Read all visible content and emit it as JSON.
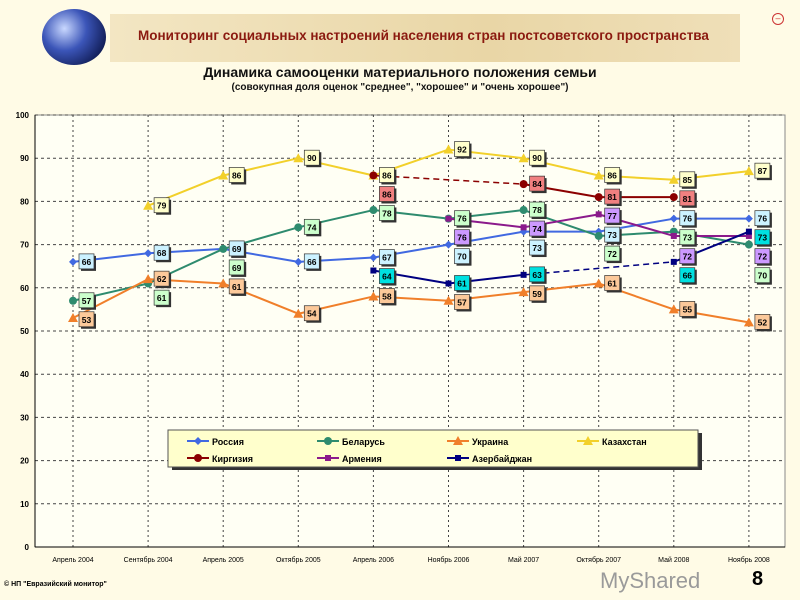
{
  "header": {
    "banner_title": "Мониторинг социальных настроений населения стран постсоветского пространства",
    "close_icon": "minus-circle-icon"
  },
  "footer": {
    "copyright": "© НП \"Евразийский монитор\"",
    "page_number": "8",
    "watermark": "MyShared"
  },
  "chart_data": {
    "type": "line",
    "title": "Динамика самооценки материального положения семьи",
    "subtitle": "(совокупная доля оценок \"среднее\", \"хорошее\" и \"очень хорошее\")",
    "xlabel": "",
    "ylabel": "",
    "ylim": [
      0,
      100
    ],
    "yticks": [
      0,
      10,
      20,
      30,
      40,
      50,
      60,
      70,
      80,
      90,
      100
    ],
    "grid": true,
    "legend_placement": "bottom-center",
    "categories": [
      "Апрель 2004",
      "Сентябрь 2004",
      "Апрель 2005",
      "Октябрь 2005",
      "Апрель 2006",
      "Ноябрь 2006",
      "Май 2007",
      "Октябрь 2007",
      "Май 2008",
      "Ноябрь 2008"
    ],
    "series": [
      {
        "name": "Россия",
        "color": "#4169e1",
        "label_fill": "#ccf2ff",
        "marker": "diamond",
        "values": [
          66,
          68,
          69,
          66,
          67,
          70,
          73,
          73,
          76,
          76
        ]
      },
      {
        "name": "Беларусь",
        "color": "#2e8b6e",
        "label_fill": "#ccffcc",
        "marker": "circle",
        "values": [
          57,
          61,
          69,
          74,
          78,
          76,
          78,
          72,
          73,
          70
        ]
      },
      {
        "name": "Украина",
        "color": "#f07f2a",
        "label_fill": "#fcc99a",
        "marker": "triangle",
        "values": [
          53,
          62,
          61,
          54,
          58,
          57,
          59,
          61,
          55,
          52
        ]
      },
      {
        "name": "Казахстан",
        "color": "#f2d02a",
        "label_fill": "#ffffcc",
        "marker": "triangle",
        "values": [
          null,
          79,
          86,
          90,
          86,
          92,
          90,
          86,
          85,
          87
        ]
      },
      {
        "name": "Киргизия",
        "color": "#8b0000",
        "label_fill": "#f08080",
        "marker": "circle",
        "dashed_gaps": true,
        "values": [
          null,
          null,
          null,
          null,
          86,
          null,
          84,
          81,
          81,
          null
        ]
      },
      {
        "name": "Армения",
        "color": "#8b1a8b",
        "label_fill": "#cc99ff",
        "marker": "square",
        "values": [
          null,
          null,
          null,
          null,
          null,
          76,
          74,
          77,
          72,
          72
        ]
      },
      {
        "name": "Азербайджан",
        "color": "#000080",
        "label_fill": "#00e0e0",
        "marker": "square",
        "dashed_gaps": true,
        "values": [
          null,
          null,
          null,
          null,
          64,
          61,
          63,
          null,
          66,
          73
        ]
      }
    ]
  }
}
